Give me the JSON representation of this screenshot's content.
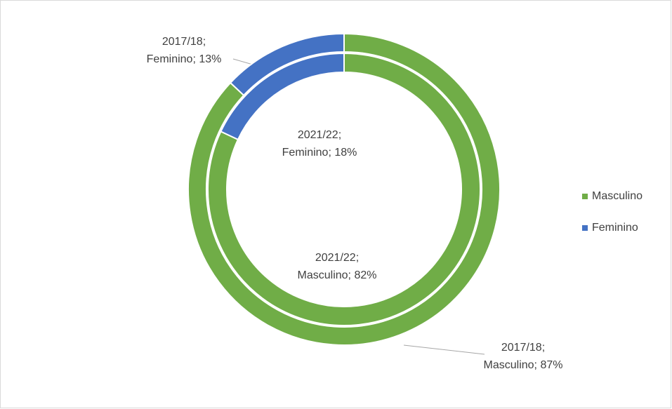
{
  "chart_data": {
    "type": "doughnut",
    "categories": [
      "Masculino",
      "Feminino"
    ],
    "colors": [
      "#70ad47",
      "#4472c4"
    ],
    "series": [
      {
        "name": "2017/18",
        "values": [
          87,
          13
        ],
        "value_labels": [
          "2017/18;\nMasculino; 87%",
          "2017/18;\nFeminino; 13%"
        ]
      },
      {
        "name": "2021/22",
        "values": [
          82,
          18
        ],
        "value_labels": [
          "2021/22;\nMasculino; 82%",
          "2021/22;\nFeminino; 18%"
        ]
      }
    ],
    "legend": "right"
  }
}
